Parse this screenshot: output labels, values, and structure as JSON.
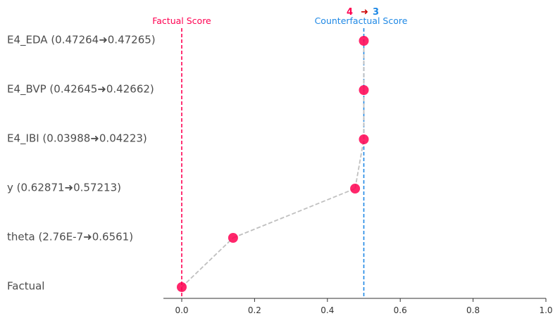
{
  "chart_data": {
    "type": "scatter",
    "title": "",
    "xlabel": "",
    "ylabel": "",
    "xlim": [
      -0.05,
      1.0
    ],
    "xticks": [
      0.0,
      0.2,
      0.4,
      0.6,
      0.8,
      1.0
    ],
    "xtick_labels": [
      "0.0",
      "0.2",
      "0.4",
      "0.6",
      "0.8",
      "1.0"
    ],
    "grid": false,
    "points": [
      {
        "label": "E4_EDA (0.47264➜0.47265)",
        "x": 0.5
      },
      {
        "label": "E4_BVP (0.42645➜0.42662)",
        "x": 0.5
      },
      {
        "label": "E4_IBI (0.03988➜0.04223)",
        "x": 0.5
      },
      {
        "label": "y (0.62871➜0.57213)",
        "x": 0.476
      },
      {
        "label": "theta (2.76E-7➜0.6561)",
        "x": 0.141
      },
      {
        "label": "Factual",
        "x": 0.0
      }
    ],
    "factual_line": {
      "x": 0.0,
      "label": "Factual Score",
      "color": "#ff0051"
    },
    "counterfactual_line": {
      "x": 0.5,
      "label": "Counterfactual Score",
      "color": "#1e88e5"
    },
    "class_change": {
      "from": "4",
      "arrow": "➜",
      "to": "3",
      "from_color": "#ff0051",
      "arrow_color": "#cc0000",
      "to_color": "#1e88e5"
    },
    "marker_color": "#ff0051",
    "path_color": "#c0c0c0"
  }
}
